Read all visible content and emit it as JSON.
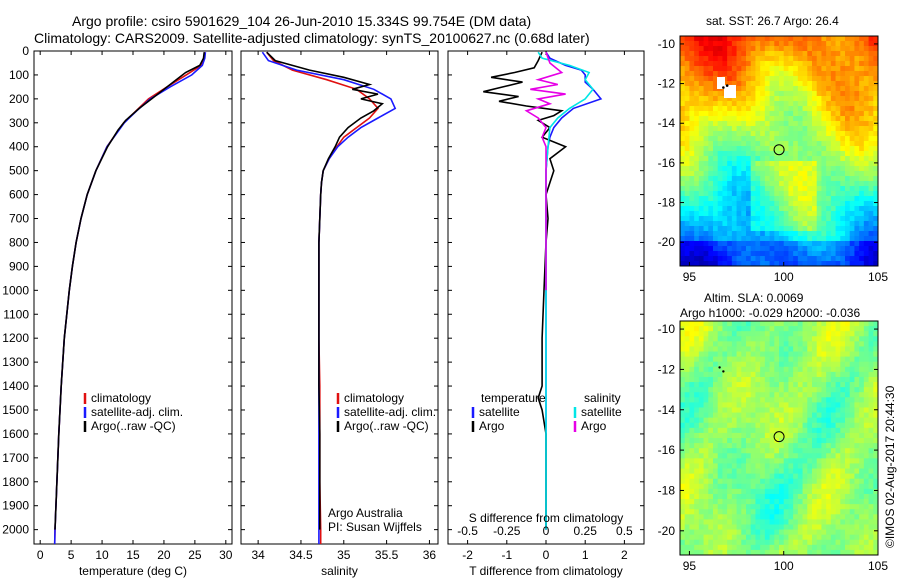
{
  "header": {
    "title_line1": "Argo profile: csiro 5901629_104 26-Jun-2010 15.334S 99.754E (DM data)",
    "title_line2": "Climatology: CARS2009. Satellite-adjusted climatology: synTS_20100627.nc (0.68d later)"
  },
  "colors": {
    "climatology": "#e01010",
    "satellite": "#1a1aff",
    "argo": "#000000",
    "satellite_salinity": "#00e6e6",
    "argo_salinity": "#e600e6"
  },
  "chart_data": [
    {
      "type": "line",
      "name": "temperature-panel",
      "xlabel": "temperature (deg C)",
      "ylabel": "",
      "xlim": [
        -1,
        31
      ],
      "ylim": [
        2060,
        0
      ],
      "xticks": [
        0,
        5,
        10,
        15,
        20,
        25,
        30
      ],
      "yticks": [
        0,
        100,
        200,
        300,
        400,
        500,
        600,
        700,
        800,
        900,
        1000,
        1100,
        1200,
        1300,
        1400,
        1500,
        1600,
        1700,
        1800,
        1900,
        2000
      ],
      "legend": [
        "climatology",
        "satellite-adj. clim.",
        "Argo(..raw -QC)"
      ],
      "series": [
        {
          "name": "climatology",
          "color_key": "climatology",
          "y": [
            5,
            30,
            60,
            100,
            150,
            200,
            250,
            300,
            400,
            500,
            600,
            700,
            800,
            900,
            1000,
            1200,
            1400,
            1600,
            1800,
            2000,
            2060
          ],
          "x": [
            26.6,
            26.5,
            26.0,
            23.6,
            20.5,
            17.5,
            15.5,
            13.5,
            10.8,
            9.0,
            7.6,
            6.6,
            5.8,
            5.2,
            4.7,
            3.9,
            3.4,
            3.0,
            2.7,
            2.4,
            2.35
          ]
        },
        {
          "name": "satellite-adj. clim.",
          "color_key": "satellite",
          "y": [
            5,
            30,
            60,
            100,
            150,
            200,
            250,
            300,
            400,
            500,
            600,
            700,
            800,
            900,
            1000,
            1200,
            1400,
            1600,
            1800,
            2000,
            2060
          ],
          "x": [
            26.7,
            26.6,
            26.2,
            24.5,
            21.0,
            17.8,
            15.6,
            13.6,
            10.8,
            9.0,
            7.6,
            6.6,
            5.8,
            5.2,
            4.7,
            3.9,
            3.4,
            3.0,
            2.7,
            2.4,
            2.35
          ]
        },
        {
          "name": "Argo(..raw -QC)",
          "color_key": "argo",
          "y": [
            5,
            30,
            60,
            90,
            130,
            170,
            200,
            240,
            290,
            330,
            400,
            500,
            600,
            700,
            800,
            900,
            1000,
            1200,
            1400,
            1600,
            1800,
            2000
          ],
          "x": [
            26.5,
            26.4,
            25.8,
            23.5,
            21.5,
            19.5,
            18.0,
            16.0,
            13.8,
            12.6,
            10.9,
            9.0,
            7.6,
            6.6,
            5.8,
            5.2,
            4.7,
            3.9,
            3.4,
            3.0,
            2.7,
            2.4
          ]
        }
      ]
    },
    {
      "type": "line",
      "name": "salinity-panel",
      "xlabel": "salinity",
      "ylabel": "",
      "xlim": [
        33.8,
        36.1
      ],
      "ylim": [
        2060,
        0
      ],
      "xticks": [
        34,
        34.5,
        35,
        35.5,
        36
      ],
      "legend": [
        "climatology",
        "satellite-adj. clim.",
        "Argo(..raw -QC)"
      ],
      "annotation": [
        "Argo Australia",
        "PI: Susan Wijffels"
      ],
      "series": [
        {
          "name": "climatology",
          "color_key": "climatology",
          "y": [
            5,
            40,
            80,
            120,
            160,
            200,
            240,
            280,
            320,
            360,
            400,
            450,
            500,
            550,
            600,
            700,
            800,
            1000,
            1200,
            1400,
            1600,
            1800,
            2000,
            2060
          ],
          "x": [
            34.1,
            34.18,
            34.4,
            34.8,
            35.15,
            35.3,
            35.4,
            35.3,
            35.15,
            35.0,
            34.92,
            34.83,
            34.76,
            34.74,
            34.73,
            34.72,
            34.71,
            34.71,
            34.71,
            34.72,
            34.72,
            34.72,
            34.73,
            34.73
          ]
        },
        {
          "name": "satellite-adj. clim.",
          "color_key": "satellite",
          "y": [
            5,
            40,
            80,
            120,
            160,
            200,
            240,
            280,
            320,
            360,
            400,
            450,
            500,
            550,
            600,
            700,
            800,
            1000,
            1200,
            1400,
            1600,
            1800,
            2000,
            2060
          ],
          "x": [
            34.05,
            34.12,
            34.45,
            35.0,
            35.35,
            35.55,
            35.6,
            35.4,
            35.2,
            35.05,
            34.93,
            34.83,
            34.76,
            34.74,
            34.73,
            34.72,
            34.71,
            34.71,
            34.71,
            34.71,
            34.71,
            34.71,
            34.71,
            34.71
          ]
        },
        {
          "name": "Argo(..raw -QC)",
          "color_key": "argo",
          "y": [
            5,
            40,
            80,
            110,
            140,
            160,
            180,
            200,
            220,
            250,
            280,
            320,
            360,
            400,
            450,
            500,
            550,
            600,
            700,
            800,
            1000,
            1200,
            1400,
            1600,
            1800,
            2000
          ],
          "x": [
            34.1,
            34.2,
            34.6,
            35.0,
            35.3,
            35.1,
            35.4,
            35.2,
            35.45,
            35.35,
            35.2,
            35.05,
            34.95,
            34.9,
            34.82,
            34.76,
            34.74,
            34.73,
            34.72,
            34.71,
            34.71,
            34.71,
            34.71,
            34.72,
            34.72,
            34.72
          ]
        }
      ]
    },
    {
      "type": "line",
      "name": "difference-panel",
      "xlabel": "T difference from climatology",
      "xlabel_top": "S difference from climatology",
      "ylabel": "",
      "xlim": [
        -2.5,
        2.5
      ],
      "ylim": [
        2060,
        0
      ],
      "xticks": [
        -2,
        -1,
        0,
        1,
        2
      ],
      "xtick_labels_top": [
        "-0.5",
        "-0.25",
        "0",
        "0.25",
        "0.5"
      ],
      "xticks_top": [
        -2,
        -1,
        0,
        1,
        2
      ],
      "legend_temperature_title": "temperature",
      "legend_salinity_title": "salinity",
      "legend_temperature": [
        "satellite",
        "Argo"
      ],
      "legend_salinity": [
        "satellite",
        "Argo"
      ],
      "series": [
        {
          "name": "temperature satellite",
          "color_key": "satellite",
          "y": [
            5,
            30,
            60,
            80,
            100,
            130,
            160,
            200,
            240,
            280,
            320,
            360,
            400,
            500,
            600,
            700,
            800,
            1000,
            1200,
            1400,
            1600,
            1800,
            2000
          ],
          "x": [
            0.0,
            0.1,
            0.5,
            0.9,
            1.0,
            1.0,
            1.2,
            1.4,
            0.7,
            0.4,
            0.2,
            0.1,
            0.05,
            0.0,
            0.0,
            0.0,
            0.0,
            0.0,
            0.0,
            0.0,
            0.0,
            0.0,
            0.0
          ]
        },
        {
          "name": "temperature Argo",
          "color_key": "argo",
          "y": [
            5,
            40,
            70,
            90,
            110,
            130,
            150,
            170,
            190,
            210,
            230,
            250,
            270,
            290,
            320,
            360,
            400,
            450,
            500,
            550,
            600,
            700,
            800,
            1000,
            1200,
            1400,
            1450,
            1500,
            1600,
            1800,
            2000
          ],
          "x": [
            -0.1,
            -0.2,
            -0.3,
            -0.8,
            -1.4,
            -0.6,
            -1.1,
            -1.6,
            -0.7,
            -1.2,
            -0.5,
            0.4,
            0.2,
            -0.2,
            0.1,
            -0.1,
            0.5,
            0.1,
            0.2,
            0.1,
            0.0,
            0.05,
            0.0,
            -0.05,
            -0.1,
            -0.1,
            -0.2,
            -0.1,
            0.0,
            0.0,
            0.0
          ]
        },
        {
          "name": "salinity satellite",
          "color_key": "satellite_salinity",
          "y": [
            5,
            30,
            60,
            90,
            120,
            160,
            200,
            240,
            280,
            320,
            400,
            500,
            600,
            800,
            1000,
            1200,
            1400,
            1600,
            1800,
            2000
          ],
          "x": [
            -0.2,
            -0.1,
            0.6,
            1.1,
            1.0,
            1.2,
            1.0,
            0.6,
            0.3,
            0.1,
            0.05,
            0.0,
            0.0,
            0.0,
            0.0,
            0.0,
            0.0,
            0.0,
            0.0,
            0.0
          ]
        },
        {
          "name": "salinity Argo",
          "color_key": "argo_salinity",
          "y": [
            5,
            50,
            90,
            120,
            140,
            160,
            180,
            200,
            220,
            250,
            280,
            320,
            360,
            400,
            450,
            500,
            550,
            600,
            700,
            800,
            1000
          ],
          "x": [
            0.0,
            0.1,
            0.4,
            -0.2,
            0.3,
            -0.4,
            0.5,
            -0.2,
            0.1,
            -0.5,
            -0.2,
            0.0,
            -0.1,
            0.0,
            0.0,
            0.0,
            0.0,
            0.0,
            0.0,
            0.0,
            0.0
          ]
        }
      ]
    },
    {
      "type": "heatmap",
      "name": "sst-map",
      "title": "sat. SST: 26.7 Argo: 26.4",
      "xlim": [
        94.5,
        105
      ],
      "ylim": [
        -21.2,
        -9.6
      ],
      "xticks": [
        95,
        100,
        105
      ],
      "yticks": [
        -10,
        -12,
        -14,
        -16,
        -18,
        -20
      ],
      "float_position": [
        99.754,
        -15.334
      ],
      "track_points": [
        [
          96.8,
          -12.2
        ],
        [
          97.0,
          -12.1
        ]
      ],
      "colormap": "jet"
    },
    {
      "type": "heatmap",
      "name": "sla-map",
      "title_line1": "Altim. SLA: 0.0069",
      "title_line2": "Argo h1000: -0.029 h2000: -0.036",
      "xlim": [
        94.5,
        105
      ],
      "ylim": [
        -21.2,
        -9.6
      ],
      "xticks": [
        95,
        100,
        105
      ],
      "yticks": [
        -10,
        -12,
        -14,
        -16,
        -18,
        -20
      ],
      "float_position": [
        99.754,
        -15.334
      ],
      "track_points": [
        [
          96.8,
          -12.1
        ],
        [
          96.6,
          -11.9
        ]
      ],
      "colormap": "jet"
    }
  ],
  "footer": "©IMOS 02-Aug-2017 20:44:30"
}
